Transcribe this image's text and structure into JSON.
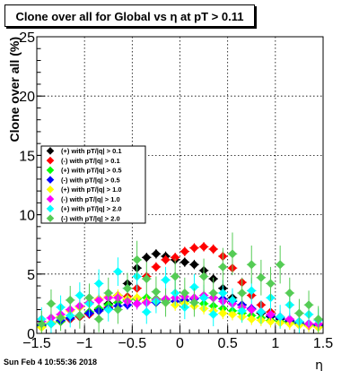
{
  "chart_data": {
    "type": "scatter",
    "title": "Clone  over all for Global vs   η at pT > 0.11",
    "xlabel": "η",
    "ylabel": "Clone  over all (%)",
    "xlim": [
      -1.5,
      1.5
    ],
    "ylim": [
      0,
      25
    ],
    "xticks": [
      "−1.5",
      "−1",
      "−0.5",
      "0",
      "0.5",
      "1",
      "1.5"
    ],
    "yticks": [
      "0",
      "5",
      "10",
      "15",
      "20",
      "25"
    ],
    "grid": true,
    "legend_position": "left-center",
    "x_bins": [
      -1.45,
      -1.35,
      -1.25,
      -1.15,
      -1.05,
      -0.95,
      -0.85,
      -0.75,
      -0.65,
      -0.55,
      -0.45,
      -0.35,
      -0.25,
      -0.15,
      -0.05,
      0.05,
      0.15,
      0.25,
      0.35,
      0.45,
      0.55,
      0.65,
      0.75,
      0.85,
      0.95,
      1.05,
      1.15,
      1.25,
      1.35,
      1.45
    ],
    "series": [
      {
        "name": "(+) with pT/|q| > 0.1",
        "color": "#000000",
        "marker": "diamond",
        "values": [
          0.7,
          0.9,
          1.0,
          1.2,
          1.4,
          1.7,
          2.0,
          2.5,
          3.2,
          4.2,
          5.5,
          6.4,
          6.7,
          6.5,
          6.2,
          6.0,
          5.8,
          5.3,
          4.6,
          3.8,
          3.0,
          2.4,
          2.0,
          1.7,
          1.4,
          1.2,
          1.0,
          0.9,
          0.8,
          0.7
        ],
        "errors": [
          0.3,
          0.3,
          0.3,
          0.3,
          0.3,
          0.3,
          0.3,
          0.3,
          0.3,
          0.4,
          0.4,
          0.4,
          0.4,
          0.4,
          0.4,
          0.4,
          0.4,
          0.4,
          0.4,
          0.3,
          0.3,
          0.3,
          0.3,
          0.3,
          0.3,
          0.3,
          0.3,
          0.3,
          0.3,
          0.3
        ]
      },
      {
        "name": "(-) with pT/|q| > 0.1",
        "color": "#ff0000",
        "marker": "diamond",
        "values": [
          0.6,
          0.8,
          1.0,
          1.2,
          1.4,
          1.6,
          1.9,
          2.2,
          2.6,
          3.1,
          3.8,
          4.8,
          5.6,
          6.2,
          6.4,
          6.9,
          7.2,
          7.3,
          7.1,
          6.5,
          5.5,
          4.3,
          3.2,
          2.4,
          1.8,
          1.4,
          1.1,
          0.9,
          0.7,
          0.6
        ],
        "errors": [
          0.3,
          0.3,
          0.3,
          0.3,
          0.3,
          0.3,
          0.3,
          0.3,
          0.3,
          0.3,
          0.4,
          0.4,
          0.4,
          0.4,
          0.4,
          0.4,
          0.4,
          0.4,
          0.4,
          0.4,
          0.4,
          0.3,
          0.3,
          0.3,
          0.3,
          0.3,
          0.3,
          0.3,
          0.3,
          0.3
        ]
      },
      {
        "name": "(+) with pT/|q| > 0.5",
        "color": "#00ff00",
        "marker": "diamond",
        "values": [
          0.6,
          0.8,
          1.0,
          1.3,
          1.5,
          1.8,
          2.1,
          2.4,
          2.6,
          2.8,
          2.9,
          3.0,
          2.9,
          2.8,
          2.7,
          2.7,
          2.6,
          2.5,
          2.3,
          2.1,
          1.9,
          1.7,
          1.5,
          1.3,
          1.1,
          1.0,
          0.9,
          0.8,
          0.7,
          0.6
        ],
        "errors": [
          0.4,
          0.4,
          0.4,
          0.4,
          0.4,
          0.4,
          0.4,
          0.4,
          0.4,
          0.4,
          0.4,
          0.4,
          0.4,
          0.4,
          0.4,
          0.4,
          0.4,
          0.4,
          0.4,
          0.4,
          0.4,
          0.4,
          0.4,
          0.4,
          0.4,
          0.4,
          0.4,
          0.4,
          0.4,
          0.4
        ]
      },
      {
        "name": "(-) with pT/|q| > 0.5",
        "color": "#0000ff",
        "marker": "diamond",
        "values": [
          0.7,
          0.9,
          1.1,
          1.3,
          1.5,
          1.7,
          1.9,
          2.1,
          2.3,
          2.4,
          2.5,
          2.6,
          2.6,
          2.6,
          2.7,
          2.8,
          2.9,
          3.0,
          3.0,
          2.9,
          2.7,
          2.4,
          2.1,
          1.8,
          1.5,
          1.3,
          1.1,
          0.9,
          0.8,
          0.7
        ],
        "errors": [
          0.4,
          0.4,
          0.4,
          0.4,
          0.4,
          0.4,
          0.4,
          0.4,
          0.4,
          0.4,
          0.4,
          0.4,
          0.4,
          0.4,
          0.4,
          0.4,
          0.4,
          0.4,
          0.4,
          0.4,
          0.4,
          0.4,
          0.4,
          0.4,
          0.4,
          0.4,
          0.4,
          0.4,
          0.4,
          0.4
        ]
      },
      {
        "name": "(+) with pT/|q| > 1.0",
        "color": "#ffff00",
        "marker": "diamond",
        "values": [
          0.5,
          0.9,
          1.4,
          1.9,
          2.2,
          2.6,
          2.9,
          3.1,
          3.2,
          2.9,
          3.0,
          2.7,
          2.8,
          2.6,
          2.4,
          2.5,
          2.3,
          2.1,
          1.9,
          1.7,
          1.6,
          1.4,
          1.2,
          1.1,
          1.0,
          0.9,
          0.8,
          0.7,
          0.6,
          0.5
        ],
        "errors": [
          0.5,
          0.5,
          0.5,
          0.5,
          0.5,
          0.5,
          0.5,
          0.5,
          0.5,
          0.5,
          0.5,
          0.5,
          0.5,
          0.5,
          0.5,
          0.5,
          0.5,
          0.5,
          0.5,
          0.5,
          0.5,
          0.5,
          0.5,
          0.5,
          0.5,
          0.5,
          0.5,
          0.5,
          0.5,
          0.5
        ]
      },
      {
        "name": "(-) with pT/|q| > 1.0",
        "color": "#ff00ff",
        "marker": "diamond",
        "values": [
          1.0,
          1.3,
          1.6,
          2.0,
          2.3,
          2.6,
          2.8,
          3.0,
          3.0,
          2.7,
          2.5,
          2.6,
          2.8,
          2.9,
          3.0,
          3.1,
          3.0,
          3.2,
          3.0,
          2.7,
          2.5,
          2.2,
          2.0,
          1.8,
          1.6,
          1.4,
          1.2,
          1.0,
          0.8,
          0.8
        ],
        "errors": [
          0.5,
          0.5,
          0.5,
          0.5,
          0.5,
          0.5,
          0.5,
          0.5,
          0.5,
          0.5,
          0.5,
          0.5,
          0.5,
          0.5,
          0.5,
          0.5,
          0.5,
          0.5,
          0.5,
          0.5,
          0.5,
          0.5,
          0.5,
          0.5,
          0.5,
          0.5,
          0.5,
          0.5,
          0.5,
          0.5
        ]
      },
      {
        "name": "(+) with pT/|q| > 2.0",
        "color": "#00ffff",
        "marker": "diamond",
        "values": [
          1.2,
          0.8,
          2.2,
          1.5,
          3.2,
          2.5,
          4.2,
          2.0,
          5.2,
          3.8,
          4.8,
          1.8,
          2.7,
          4.5,
          3.4,
          2.2,
          3.9,
          3.0,
          1.6,
          3.4,
          2.8,
          1.9,
          3.6,
          1.8,
          3.0,
          1.4,
          2.4,
          1.0,
          1.6,
          1.1
        ],
        "errors": [
          1.0,
          1.0,
          1.0,
          1.0,
          1.1,
          1.1,
          1.2,
          1.0,
          1.2,
          1.1,
          1.2,
          1.0,
          1.0,
          1.1,
          1.1,
          1.0,
          1.1,
          1.1,
          1.0,
          1.1,
          1.0,
          1.0,
          1.1,
          1.0,
          1.1,
          1.0,
          1.0,
          1.0,
          1.0,
          1.0
        ]
      },
      {
        "name": "(-) with pT/|q| > 2.0",
        "color": "#55cc55",
        "marker": "diamond",
        "values": [
          0.8,
          2.5,
          1.3,
          2.8,
          1.5,
          3.0,
          1.2,
          3.4,
          2.0,
          3.8,
          6.2,
          4.6,
          3.5,
          2.6,
          4.8,
          3.4,
          2.6,
          4.8,
          3.4,
          5.6,
          6.7,
          3.4,
          5.8,
          4.7,
          4.2,
          5.8,
          3.4,
          1.7,
          2.4,
          1.2
        ],
        "errors": [
          1.1,
          1.2,
          1.1,
          1.2,
          1.1,
          1.2,
          1.1,
          1.3,
          1.2,
          1.3,
          1.6,
          1.4,
          1.3,
          1.2,
          1.5,
          1.3,
          1.2,
          1.5,
          1.3,
          1.6,
          1.8,
          1.3,
          1.6,
          1.5,
          1.4,
          1.6,
          1.3,
          1.2,
          1.2,
          1.1
        ]
      }
    ]
  },
  "footer": {
    "timestamp": "Sun Feb  4 10:55:36 2018"
  }
}
